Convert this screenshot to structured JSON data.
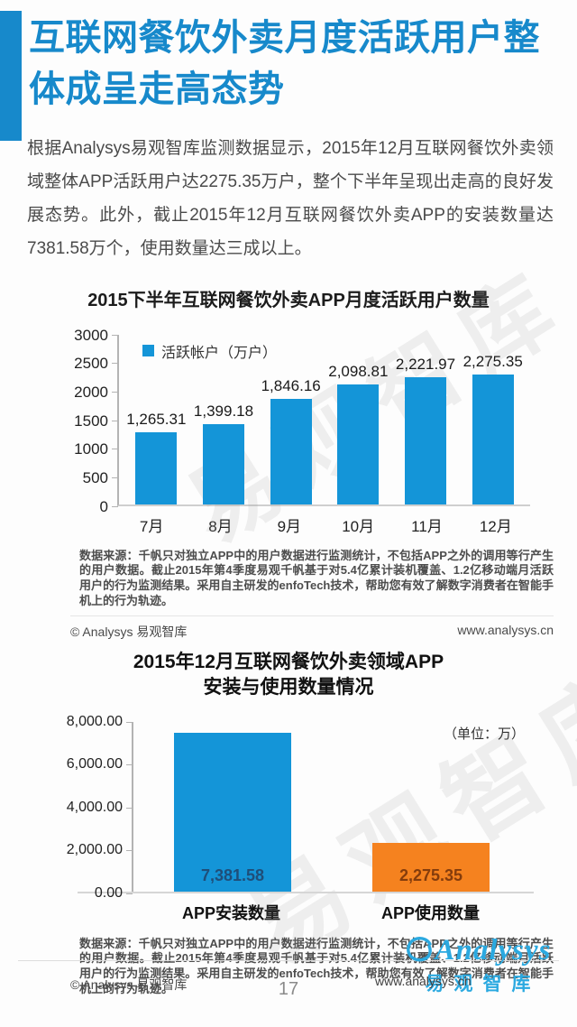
{
  "header": {
    "title": "互联网餐饮外卖月度活跃用户整体成呈走高态势"
  },
  "intro": {
    "text": "根据Analysys易观智库监测数据显示，2015年12月互联网餐饮外卖领域整体APP活跃用户达2275.35万户，整个下半年呈现出走高的良好发展态势。此外，截止2015年12月互联网餐饮外卖APP的安装数量达7381.58万个，使用数量达三成以上。"
  },
  "watermark": "易观智库",
  "source_note": "数据来源：千帆只对独立APP中的用户数据进行监测统计，不包括APP之外的调用等行产生的用户数据。截止2015年第4季度易观千帆基于对5.4亿累计装机覆盖、1.2亿移动端月活跃用户的行为监测结果。采用自主研发的enfoTech技术，帮助您有效了解数字消费者在智能手机上的行为轨迹。",
  "copyright": "© Analysys 易观智库",
  "website": "www.analysys.cn",
  "footer": {
    "page_number": "17",
    "logo_text": "Analysys",
    "logo_subtext": "易观智库"
  },
  "colors": {
    "accent_blue": "#1789cb",
    "bar_blue": "#1495d8",
    "bar_orange": "#f5821f",
    "logo_blue": "#2ba9e0"
  },
  "chart_data": [
    {
      "type": "bar",
      "title": "2015下半年互联网餐饮外卖APP月度活跃用户数量",
      "legend": [
        "活跃帐户（万户）"
      ],
      "legend_position": "top-left",
      "categories": [
        "7月",
        "8月",
        "9月",
        "10月",
        "11月",
        "12月"
      ],
      "values": [
        1265.31,
        1399.18,
        1846.16,
        2098.81,
        2221.97,
        2275.35
      ],
      "value_labels": [
        "1,265.31",
        "1,399.18",
        "1,846.16",
        "2,098.81",
        "2,221.97",
        "2,275.35"
      ],
      "xlabel": "",
      "ylabel": "",
      "ylim": [
        0,
        3000
      ],
      "y_ticks": [
        "3000",
        "2500",
        "2000",
        "1500",
        "1000",
        "500",
        "0"
      ],
      "grid": false,
      "bar_colors": [
        "#1495d8"
      ],
      "value_label_position": "above"
    },
    {
      "type": "bar",
      "title": "2015年12月互联网餐饮外卖领域APP安装与使用数量情况",
      "title_lines": [
        "2015年12月互联网餐饮外卖领域APP",
        "安装与使用数量情况"
      ],
      "unit_label": "（单位：万）",
      "categories": [
        "APP安装数量",
        "APP使用数量"
      ],
      "values": [
        7381.58,
        2275.35
      ],
      "value_labels": [
        "7,381.58",
        "2,275.35"
      ],
      "xlabel": "",
      "ylabel": "",
      "ylim": [
        0,
        8000
      ],
      "y_ticks": [
        "8,000.00",
        "6,000.00",
        "4,000.00",
        "2,000.00",
        "0.00"
      ],
      "grid": false,
      "bar_colors": [
        "#1495d8",
        "#f5821f"
      ],
      "value_label_colors": [
        "#1f4e79",
        "#843c0c"
      ],
      "value_label_position": "inside"
    }
  ]
}
